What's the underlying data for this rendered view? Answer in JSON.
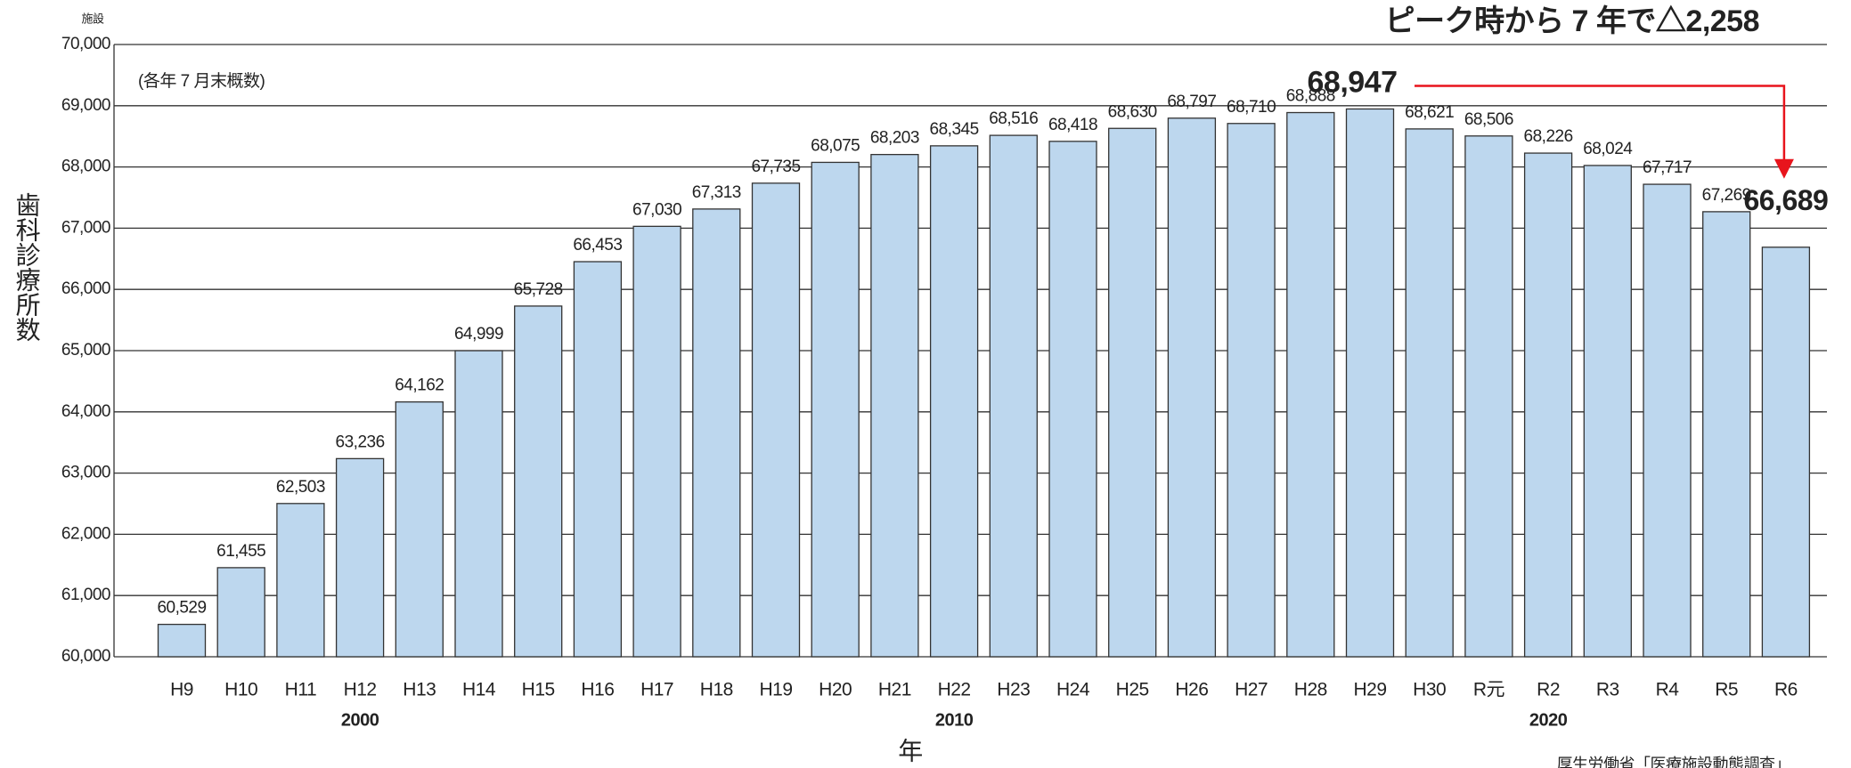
{
  "chart_data": {
    "type": "bar",
    "unit_label": "施設",
    "note": "(各年 7 月末概数)",
    "y_label": "歯科診療所数",
    "x_label": "年",
    "annotation": "ピーク時から 7 年で△2,258",
    "source": "厚生労働省「医療施設動態調査」",
    "categories": [
      "H9",
      "H10",
      "H11",
      "H12",
      "H13",
      "H14",
      "H15",
      "H16",
      "H17",
      "H18",
      "H19",
      "H20",
      "H21",
      "H22",
      "H23",
      "H24",
      "H25",
      "H26",
      "H27",
      "H28",
      "H29",
      "H30",
      "R元",
      "R2",
      "R3",
      "R4",
      "R5",
      "R6"
    ],
    "values": [
      60529,
      61455,
      62503,
      63236,
      64162,
      64999,
      65728,
      66453,
      67030,
      67313,
      67735,
      68075,
      68203,
      68345,
      68516,
      68418,
      68630,
      68797,
      68710,
      68888,
      68947,
      68621,
      68506,
      68226,
      68024,
      67717,
      67269,
      66689
    ],
    "value_labels": [
      "60,529",
      "61,455",
      "62,503",
      "63,236",
      "64,162",
      "64,999",
      "65,728",
      "66,453",
      "67,030",
      "67,313",
      "67,735",
      "68,075",
      "68,203",
      "68,345",
      "68,516",
      "68,418",
      "68,630",
      "68,797",
      "68,710",
      "68,888",
      "68,947",
      "68,621",
      "68,506",
      "68,226",
      "68,024",
      "67,717",
      "67,269",
      "66,689"
    ],
    "year_labels": [
      {
        "category": "H12",
        "label": "2000"
      },
      {
        "category": "H22",
        "label": "2010"
      },
      {
        "category": "R2",
        "label": "2020"
      }
    ],
    "color": "#bdd7ee",
    "highlight_color": "#e8141c",
    "year_color": "#1a9ad6",
    "ylim": [
      60000,
      70000
    ],
    "yticks": [
      {
        "value": 60000,
        "label": "60,000"
      },
      {
        "value": 61000,
        "label": "61,000"
      },
      {
        "value": 62000,
        "label": "62,000"
      },
      {
        "value": 63000,
        "label": "63,000"
      },
      {
        "value": 64000,
        "label": "64,000"
      },
      {
        "value": 65000,
        "label": "65,000"
      },
      {
        "value": 66000,
        "label": "66,000"
      },
      {
        "value": 67000,
        "label": "67,000"
      },
      {
        "value": 68000,
        "label": "68,000"
      },
      {
        "value": 69000,
        "label": "69,000"
      },
      {
        "value": 70000,
        "label": "70,000"
      }
    ],
    "grid": true
  }
}
